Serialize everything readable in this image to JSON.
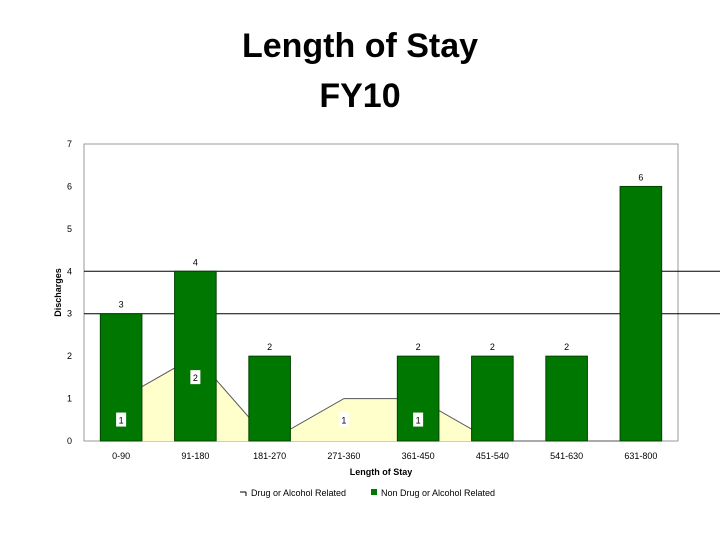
{
  "title": {
    "line1": "Length of Stay",
    "line2": "FY10"
  },
  "colors": {
    "bar": "#007700",
    "bar_edge": "#004400",
    "area_fill": "#ffffcc",
    "area_line": "#555555",
    "frame_fill": "#ffffff",
    "gridline": "#000000"
  },
  "legend": {
    "area_label": "Drug or Alcohol Related",
    "bar_label": "Non Drug or Alcohol Related",
    "placement": "bottom"
  },
  "chart_data": {
    "type": "bar",
    "xlabel": "Length of Stay",
    "ylabel": "Discharges",
    "ylim": [
      0,
      7
    ],
    "yticks": [
      0,
      1,
      2,
      3,
      4,
      5,
      6,
      7
    ],
    "gridlines_at": [
      3,
      4
    ],
    "categories": [
      "0-90",
      "91-180",
      "181-270",
      "271-360",
      "361-450",
      "451-540",
      "541-630",
      "631-800"
    ],
    "series": [
      {
        "name": "Non Drug or Alcohol Related",
        "type": "bar",
        "values": [
          3,
          4,
          2,
          null,
          2,
          2,
          2,
          6
        ],
        "labels": [
          "3",
          "4",
          "2",
          "",
          "2",
          "2",
          "2",
          "6"
        ]
      },
      {
        "name": "Drug or Alcohol Related",
        "type": "area",
        "values": [
          1,
          2,
          0,
          1,
          1,
          0,
          0,
          0
        ],
        "labels": [
          "1",
          "2",
          "",
          "1",
          "1",
          "",
          "",
          ""
        ]
      }
    ]
  }
}
